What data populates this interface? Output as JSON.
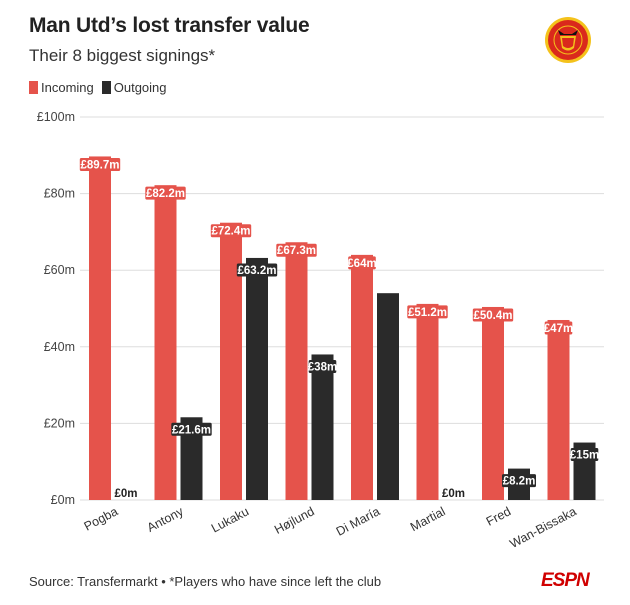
{
  "header": {
    "title": "Man Utd’s lost transfer value",
    "subtitle": "Their 8 biggest signings*"
  },
  "logo": {
    "icon": "manchester-united-crest-icon"
  },
  "legend": {
    "incoming_label": "Incoming",
    "outgoing_label": "Outgoing",
    "incoming_color": "#e5534b",
    "outgoing_color": "#2a2a2a"
  },
  "footer": {
    "source": "Source: Transfermarkt • *Players who have since left the club",
    "brand": "ESPN"
  },
  "chart_data": {
    "type": "bar",
    "title": "Man Utd’s lost transfer value",
    "subtitle": "Their 8 biggest signings*",
    "categories": [
      "Pogba",
      "Antony",
      "Lukaku",
      "Højlund",
      "Di María",
      "Martial",
      "Fred",
      "Wan-Bissaka"
    ],
    "series": [
      {
        "name": "Incoming",
        "color": "#e5534b",
        "values": [
          89.7,
          82.2,
          72.4,
          67.3,
          64,
          51.2,
          50.4,
          47
        ],
        "labels": [
          "£89.7m",
          "£82.2m",
          "£72.4m",
          "£67.3m",
          "£64m",
          "£51.2m",
          "£50.4m",
          "£47m"
        ]
      },
      {
        "name": "Outgoing",
        "color": "#2a2a2a",
        "values": [
          0,
          21.6,
          63.2,
          38,
          54,
          0,
          8.2,
          15
        ],
        "labels": [
          "£0m",
          "£21.6m",
          "£63.2m",
          "£38m",
          "",
          "£0m",
          "£8.2m",
          "£15m"
        ]
      }
    ],
    "y_ticks": [
      0,
      20,
      40,
      60,
      80,
      100
    ],
    "y_tick_labels": [
      "£0m",
      "£20m",
      "£40m",
      "£60m",
      "£80m",
      "£100m"
    ],
    "ylim": [
      0,
      100
    ],
    "grid": true,
    "legend_position": "top-left"
  }
}
